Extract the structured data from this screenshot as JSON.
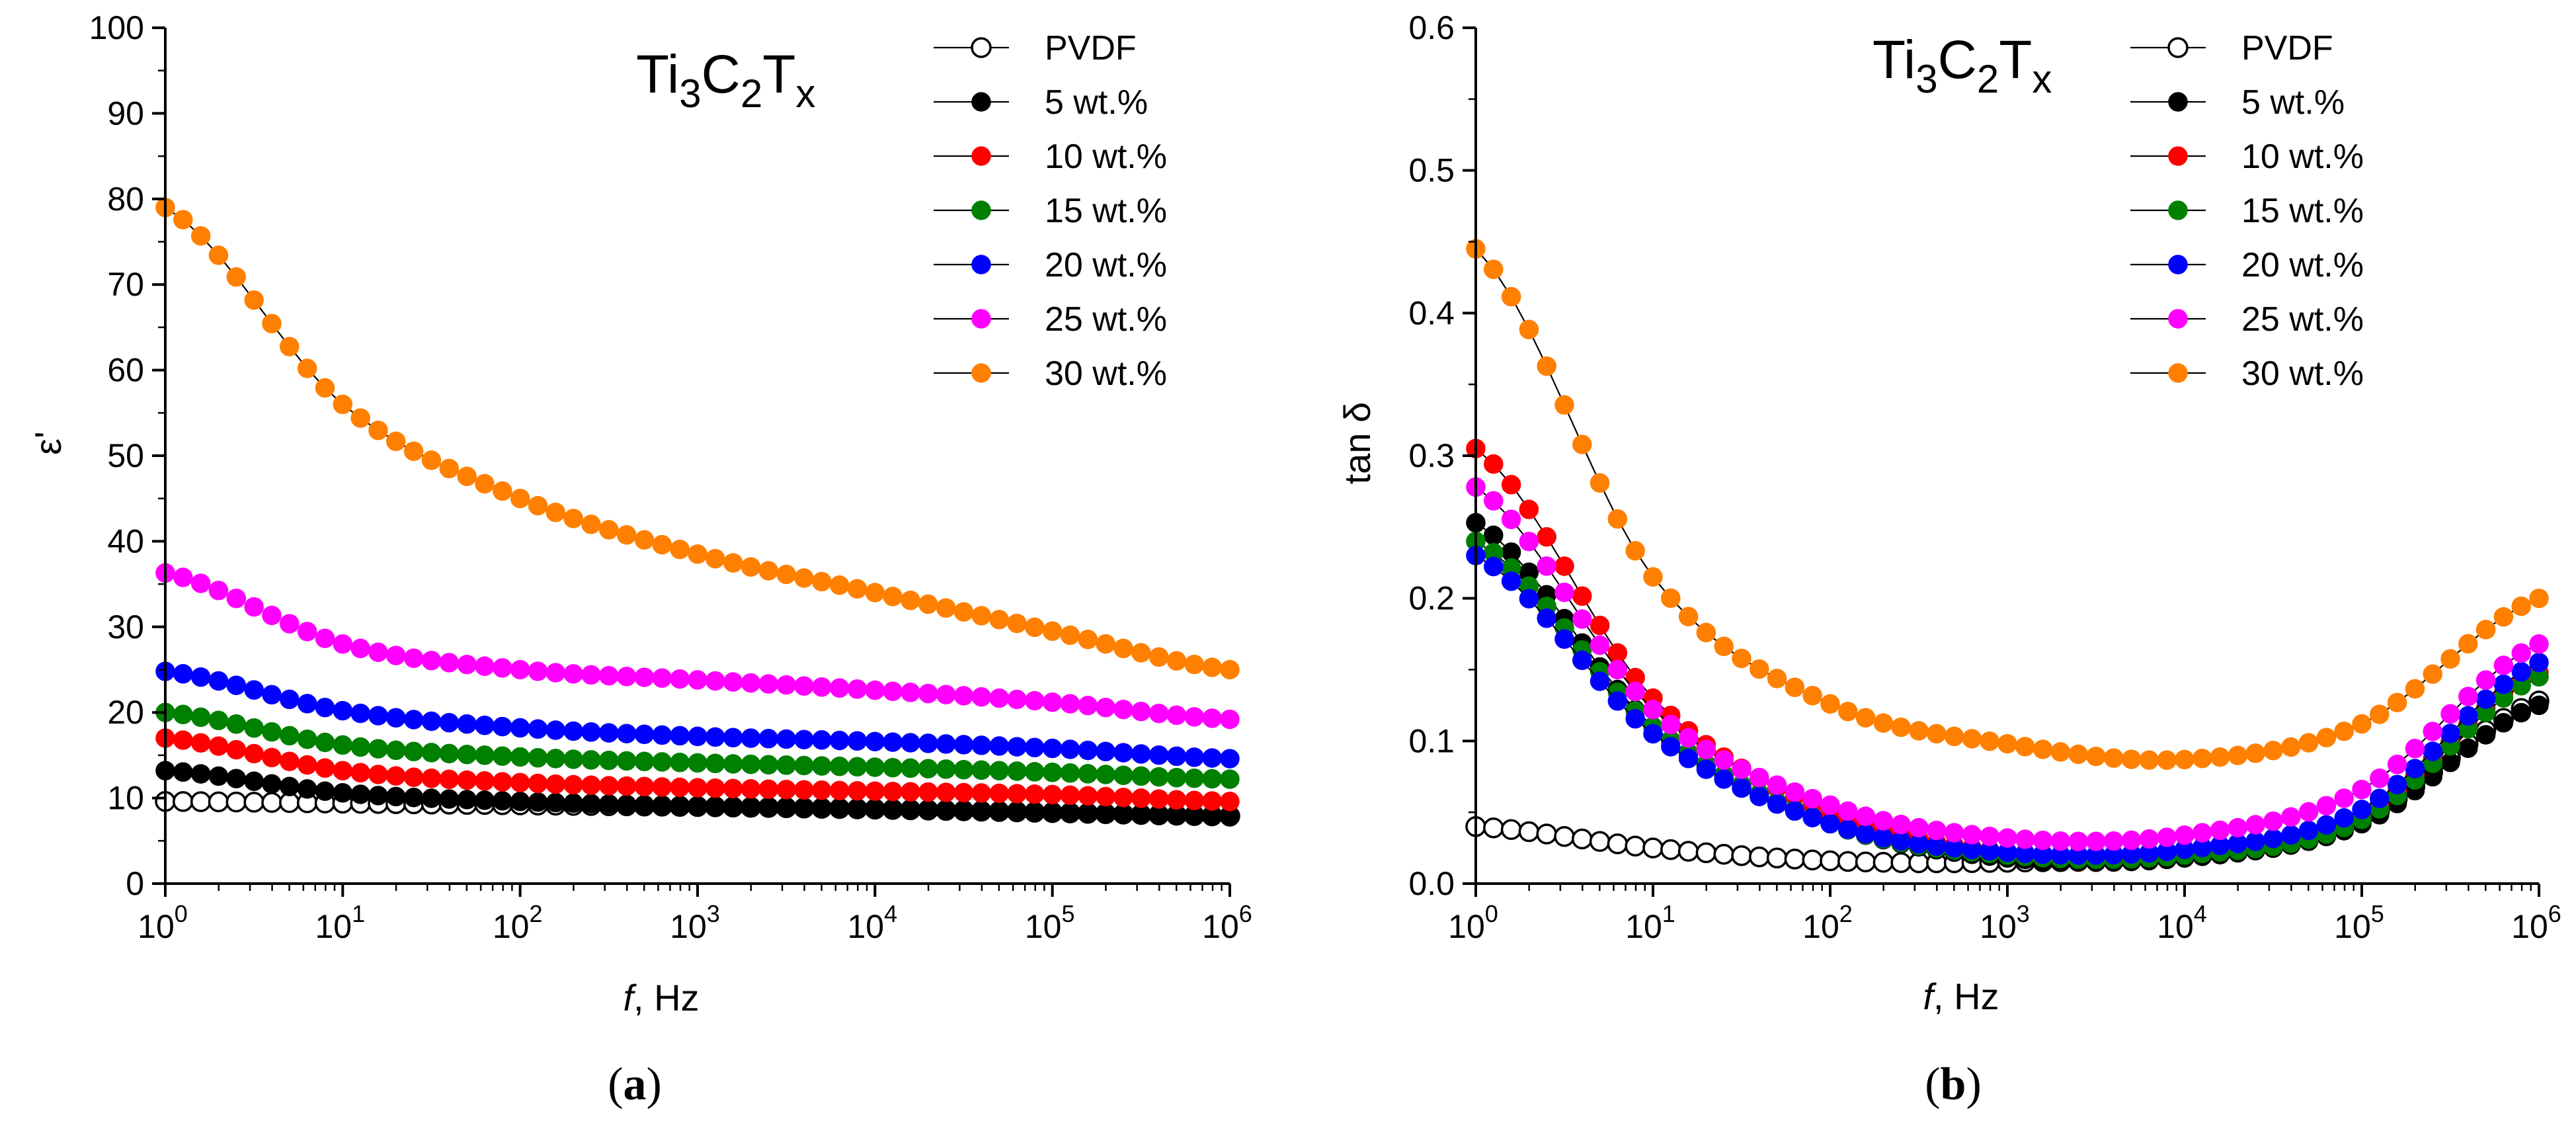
{
  "chart_data": [
    {
      "type": "scatter",
      "panel": "a",
      "title": "Ti3C2Tx",
      "title_parts": {
        "base1": "Ti",
        "sub1": "3",
        "base2": "C",
        "sub2": "2",
        "base3": "T",
        "sub3": "x"
      },
      "xlabel_italic": "f",
      "xlabel_rest": ", Hz",
      "ylabel": "ε'",
      "xscale": "log",
      "xlim": [
        1,
        1000000
      ],
      "ylim": [
        0,
        100
      ],
      "x_ticks": [
        {
          "base": "10",
          "exp": "0"
        },
        {
          "base": "10",
          "exp": "1"
        },
        {
          "base": "10",
          "exp": "2"
        },
        {
          "base": "10",
          "exp": "3"
        },
        {
          "base": "10",
          "exp": "4"
        },
        {
          "base": "10",
          "exp": "5"
        },
        {
          "base": "10",
          "exp": "6"
        }
      ],
      "y_ticks": [
        "0",
        "10",
        "20",
        "30",
        "40",
        "50",
        "60",
        "70",
        "80",
        "90",
        "100"
      ],
      "legend_position": "top-right",
      "series": [
        {
          "name": "PVDF",
          "color": "#000000",
          "filled": false,
          "line": false,
          "anchors": [
            [
              0,
              9.6
            ],
            [
              1,
              9.4
            ],
            [
              2,
              9.2
            ],
            [
              3,
              9.0
            ],
            [
              4,
              8.7
            ],
            [
              5,
              8.3
            ],
            [
              6,
              7.9
            ]
          ]
        },
        {
          "name": "5 wt.%",
          "color": "#000000",
          "filled": true,
          "line": false,
          "anchors": [
            [
              0,
              13.2
            ],
            [
              1,
              10.6
            ],
            [
              2,
              9.6
            ],
            [
              3,
              9.1
            ],
            [
              4,
              8.8
            ],
            [
              5,
              8.4
            ],
            [
              6,
              7.8
            ]
          ]
        },
        {
          "name": "10 wt.%",
          "color": "#ff0000",
          "filled": true,
          "line": false,
          "anchors": [
            [
              0,
              17.0
            ],
            [
              1,
              13.2
            ],
            [
              2,
              11.8
            ],
            [
              3,
              11.2
            ],
            [
              4,
              10.8
            ],
            [
              5,
              10.4
            ],
            [
              6,
              9.6
            ]
          ]
        },
        {
          "name": "15 wt.%",
          "color": "#008000",
          "filled": true,
          "line": false,
          "anchors": [
            [
              0,
              20.0
            ],
            [
              1,
              16.2
            ],
            [
              2,
              14.8
            ],
            [
              3,
              14.1
            ],
            [
              4,
              13.6
            ],
            [
              5,
              13.0
            ],
            [
              6,
              12.2
            ]
          ]
        },
        {
          "name": "20 wt.%",
          "color": "#0000ff",
          "filled": true,
          "line": false,
          "anchors": [
            [
              0,
              24.8
            ],
            [
              1,
              20.2
            ],
            [
              2,
              18.2
            ],
            [
              3,
              17.2
            ],
            [
              4,
              16.6
            ],
            [
              5,
              15.8
            ],
            [
              6,
              14.6
            ]
          ]
        },
        {
          "name": "25 wt.%",
          "color": "#ff00ff",
          "filled": true,
          "line": false,
          "anchors": [
            [
              0,
              36.3
            ],
            [
              1,
              28.0
            ],
            [
              2,
              25.0
            ],
            [
              3,
              23.8
            ],
            [
              4,
              22.6
            ],
            [
              5,
              21.2
            ],
            [
              6,
              19.2
            ]
          ]
        },
        {
          "name": "30 wt.%",
          "color": "#ff8000",
          "filled": true,
          "line": true,
          "anchors": [
            [
              0,
              79.0
            ],
            [
              1,
              56.0
            ],
            [
              2,
              45.0
            ],
            [
              3,
              38.5
            ],
            [
              4,
              34.0
            ],
            [
              5,
              29.5
            ],
            [
              6,
              25.0
            ]
          ]
        }
      ],
      "panel_label": "(a)",
      "panel_label_parts": {
        "open": "(",
        "letter": "a",
        "close": ")"
      }
    },
    {
      "type": "scatter",
      "panel": "b",
      "title": "Ti3C2Tx",
      "title_parts": {
        "base1": "Ti",
        "sub1": "3",
        "base2": "C",
        "sub2": "2",
        "base3": "T",
        "sub3": "x"
      },
      "xlabel_italic": "f",
      "xlabel_rest": ", Hz",
      "ylabel": "tan δ",
      "xscale": "log",
      "xlim": [
        1,
        1000000
      ],
      "ylim": [
        0,
        0.6
      ],
      "x_ticks": [
        {
          "base": "10",
          "exp": "0"
        },
        {
          "base": "10",
          "exp": "1"
        },
        {
          "base": "10",
          "exp": "2"
        },
        {
          "base": "10",
          "exp": "3"
        },
        {
          "base": "10",
          "exp": "4"
        },
        {
          "base": "10",
          "exp": "5"
        },
        {
          "base": "10",
          "exp": "6"
        }
      ],
      "y_ticks": [
        "0.0",
        "0.1",
        "0.2",
        "0.3",
        "0.4",
        "0.5",
        "0.6"
      ],
      "legend_position": "top-right",
      "series": [
        {
          "name": "PVDF",
          "color": "#000000",
          "filled": false,
          "line": true,
          "anchors": [
            [
              0,
              0.04
            ],
            [
              1,
              0.025
            ],
            [
              2,
              0.016
            ],
            [
              3,
              0.015
            ],
            [
              4,
              0.02
            ],
            [
              5,
              0.045
            ],
            [
              6,
              0.128
            ]
          ]
        },
        {
          "name": "5 wt.%",
          "color": "#000000",
          "filled": true,
          "line": true,
          "anchors": [
            [
              0,
              0.253
            ],
            [
              1,
              0.11
            ],
            [
              2,
              0.042
            ],
            [
              3,
              0.018
            ],
            [
              4,
              0.018
            ],
            [
              5,
              0.042
            ],
            [
              6,
              0.125
            ]
          ]
        },
        {
          "name": "10 wt.%",
          "color": "#ff0000",
          "filled": true,
          "line": true,
          "anchors": [
            [
              0,
              0.305
            ],
            [
              1,
              0.13
            ],
            [
              2,
              0.05
            ],
            [
              3,
              0.022
            ],
            [
              4,
              0.022
            ],
            [
              5,
              0.048
            ],
            [
              6,
              0.148
            ]
          ]
        },
        {
          "name": "15 wt.%",
          "color": "#008000",
          "filled": true,
          "line": true,
          "anchors": [
            [
              0,
              0.24
            ],
            [
              1,
              0.11
            ],
            [
              2,
              0.042
            ],
            [
              3,
              0.02
            ],
            [
              4,
              0.02
            ],
            [
              5,
              0.045
            ],
            [
              6,
              0.145
            ]
          ]
        },
        {
          "name": "20 wt.%",
          "color": "#0000ff",
          "filled": true,
          "line": true,
          "anchors": [
            [
              0,
              0.23
            ],
            [
              1,
              0.105
            ],
            [
              2,
              0.042
            ],
            [
              3,
              0.022
            ],
            [
              4,
              0.024
            ],
            [
              5,
              0.052
            ],
            [
              6,
              0.155
            ]
          ]
        },
        {
          "name": "25 wt.%",
          "color": "#ff00ff",
          "filled": true,
          "line": true,
          "anchors": [
            [
              0,
              0.278
            ],
            [
              1,
              0.122
            ],
            [
              2,
              0.055
            ],
            [
              3,
              0.032
            ],
            [
              4,
              0.034
            ],
            [
              5,
              0.066
            ],
            [
              6,
              0.168
            ]
          ]
        },
        {
          "name": "30 wt.%",
          "color": "#ff8000",
          "filled": true,
          "line": true,
          "anchors": [
            [
              0,
              0.445
            ],
            [
              1,
              0.215
            ],
            [
              2,
              0.126
            ],
            [
              3,
              0.098
            ],
            [
              4,
              0.087
            ],
            [
              5,
              0.112
            ],
            [
              6,
              0.2
            ]
          ]
        }
      ],
      "panel_label": "(b)",
      "panel_label_parts": {
        "open": "(",
        "letter": "b",
        "close": ")"
      }
    }
  ]
}
